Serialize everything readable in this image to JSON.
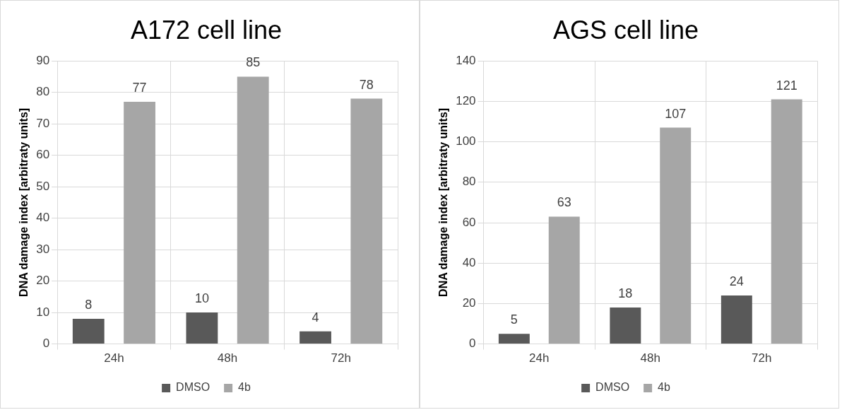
{
  "chart_data": [
    {
      "type": "bar",
      "title": "A172 cell line",
      "ylabel": "DNA damage index [arbitraty units]",
      "categories": [
        "24h",
        "48h",
        "72h"
      ],
      "series": [
        {
          "name": "DMSO",
          "color": "#595959",
          "values": [
            8,
            10,
            4
          ]
        },
        {
          "name": "4b",
          "color": "#a6a6a6",
          "values": [
            77,
            85,
            78
          ]
        }
      ],
      "ylim": [
        0,
        90
      ],
      "yticks": [
        0,
        10,
        20,
        30,
        40,
        50,
        60,
        70,
        80,
        90
      ],
      "grid": true,
      "legend": "bottom",
      "data_labels": true
    },
    {
      "type": "bar",
      "title": "AGS cell line",
      "ylabel": "DNA damage index [arbitraty units]",
      "categories": [
        "24h",
        "48h",
        "72h"
      ],
      "series": [
        {
          "name": "DMSO",
          "color": "#595959",
          "values": [
            5,
            18,
            24
          ]
        },
        {
          "name": "4b",
          "color": "#a6a6a6",
          "values": [
            63,
            107,
            121
          ]
        }
      ],
      "ylim": [
        0,
        140
      ],
      "yticks": [
        0,
        20,
        40,
        60,
        80,
        100,
        120,
        140
      ],
      "grid": true,
      "legend": "bottom",
      "data_labels": true
    }
  ]
}
